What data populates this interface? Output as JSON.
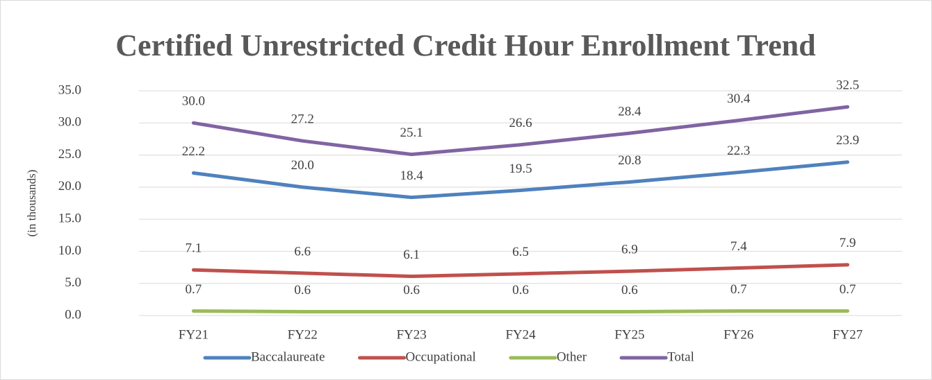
{
  "chart_data": {
    "type": "line",
    "title": "Certified Unrestricted Credit Hour Enrollment Trend",
    "y_label": "(in thousands)",
    "categories": [
      "FY21",
      "FY22",
      "FY23",
      "FY24",
      "FY25",
      "FY26",
      "FY27"
    ],
    "series": [
      {
        "name": "Baccalaureate",
        "color": "#4f81bd",
        "values": [
          22.2,
          20.0,
          18.4,
          19.5,
          20.8,
          22.3,
          23.9
        ],
        "value_labels": [
          "22.2",
          "20.0",
          "18.4",
          "19.5",
          "20.8",
          "22.3",
          "23.9"
        ]
      },
      {
        "name": "Occupational",
        "color": "#c0504d",
        "values": [
          7.1,
          6.6,
          6.1,
          6.5,
          6.9,
          7.4,
          7.9
        ],
        "value_labels": [
          "7.1",
          "6.6",
          "6.1",
          "6.5",
          "6.9",
          "7.4",
          "7.9"
        ]
      },
      {
        "name": "Other",
        "color": "#9bbb59",
        "values": [
          0.7,
          0.6,
          0.6,
          0.6,
          0.6,
          0.7,
          0.7
        ],
        "value_labels": [
          "0.7",
          "0.6",
          "0.6",
          "0.6",
          "0.6",
          "0.7",
          "0.7"
        ]
      },
      {
        "name": "Total",
        "color": "#8064a2",
        "values": [
          30.0,
          27.2,
          25.1,
          26.6,
          28.4,
          30.4,
          32.5
        ],
        "value_labels": [
          "30.0",
          "27.2",
          "25.1",
          "26.6",
          "28.4",
          "30.4",
          "32.5"
        ]
      }
    ],
    "ylim": [
      0,
      35
    ],
    "yticks": [
      {
        "value": 0,
        "label": "0.0"
      },
      {
        "value": 5,
        "label": "5.0"
      },
      {
        "value": 10,
        "label": "10.0"
      },
      {
        "value": 15,
        "label": "15.0"
      },
      {
        "value": 20,
        "label": "20.0"
      },
      {
        "value": 25,
        "label": "25.0"
      },
      {
        "value": 30,
        "label": "30.0"
      },
      {
        "value": 35,
        "label": "35.0"
      }
    ],
    "grid": true,
    "legend": "bottom"
  }
}
